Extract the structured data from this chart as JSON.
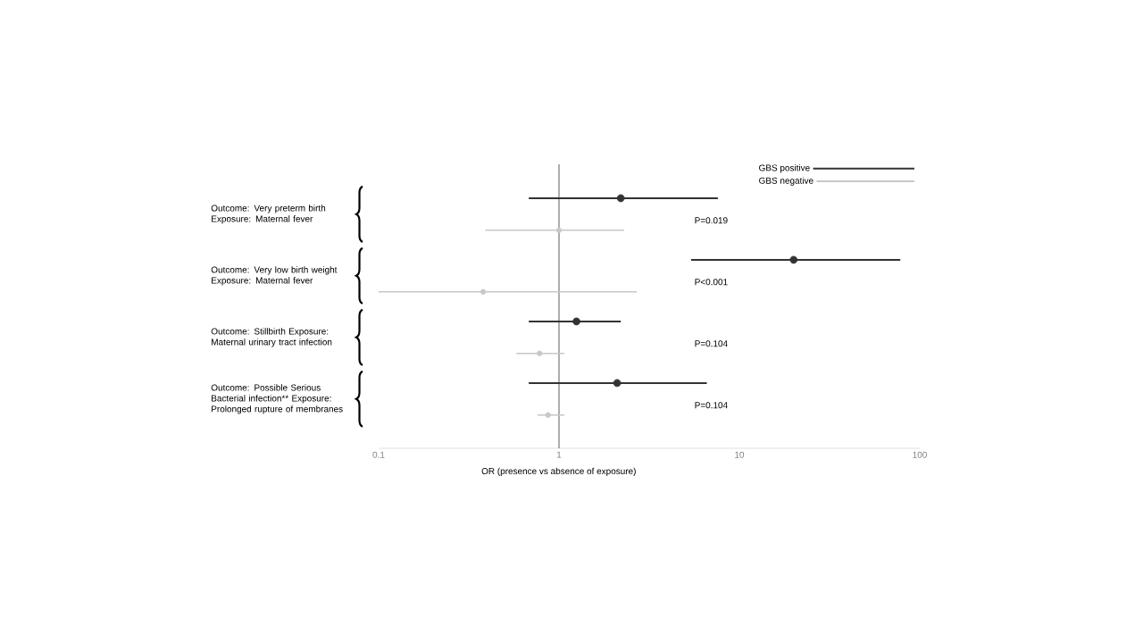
{
  "chart_data": {
    "type": "scatter",
    "orientation": "horizontal",
    "log": "x",
    "categories": [
      "Outcome: Very preterm birth Exposure: Maternal fever",
      "Outcome: Very low birth weight Exposure: Maternal fever",
      "Outcome: Stillbirth Exposure: Maternal urinary tract infection",
      "Outcome: Possible Serious Bacterial infection** Exposure: Prolonged rupture of membranes"
    ],
    "series": [
      {
        "name": "GBS positive",
        "color": "#333333",
        "values": [
          2.2,
          20,
          1.25,
          2.1
        ],
        "errors": [
          [
            0.68,
            7.6
          ],
          [
            5.4,
            78
          ],
          [
            0.68,
            2.2
          ],
          [
            0.68,
            6.6
          ]
        ]
      },
      {
        "name": "GBS negative",
        "color": "#c8c8c8",
        "values": [
          1.0,
          0.38,
          0.78,
          0.87
        ],
        "errors": [
          [
            0.39,
            2.3
          ],
          [
            0.1,
            2.7
          ],
          [
            0.58,
            1.07
          ],
          [
            0.76,
            1.07
          ]
        ]
      }
    ],
    "xlim": [
      0.1,
      100
    ],
    "xticks": [
      0.1,
      1,
      10,
      100
    ],
    "xlabel": "OR (presence vs absence of exposure)",
    "ref_lines": [
      {
        "axis": "x",
        "value": 1,
        "color": "#999999"
      }
    ],
    "annotations": [
      "P=0.019",
      "P<0.001",
      "P=0.104",
      "P=0.104"
    ],
    "legend": "top right"
  }
}
